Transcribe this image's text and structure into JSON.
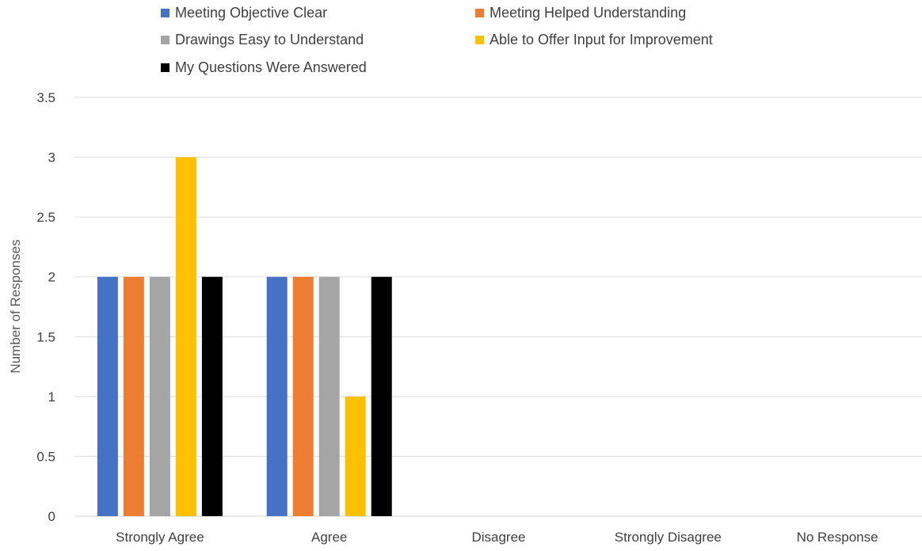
{
  "chart_data": {
    "type": "bar",
    "title": "",
    "xlabel": "",
    "ylabel": "Number of Responses",
    "categories": [
      "Strongly Agree",
      "Agree",
      "Disagree",
      "Strongly Disagree",
      "No Response"
    ],
    "series": [
      {
        "name": "Meeting Objective Clear",
        "color": "#4472C4",
        "values": [
          2,
          2,
          0,
          0,
          0
        ]
      },
      {
        "name": "Meeting Helped Understanding",
        "color": "#ED7D31",
        "values": [
          2,
          2,
          0,
          0,
          0
        ]
      },
      {
        "name": "Drawings Easy to Understand",
        "color": "#A5A5A5",
        "values": [
          2,
          2,
          0,
          0,
          0
        ]
      },
      {
        "name": "Able to Offer Input for Improvement",
        "color": "#FFC000",
        "values": [
          3,
          1,
          0,
          0,
          0
        ]
      },
      {
        "name": "My Questions Were Answered",
        "color": "#000000",
        "values": [
          2,
          2,
          0,
          0,
          0
        ]
      }
    ],
    "ylim": [
      0,
      3.5
    ],
    "yticks": [
      "0",
      "0.5",
      "1",
      "1.5",
      "2",
      "2.5",
      "3",
      "3.5"
    ],
    "grid": true,
    "legend_position": "top"
  }
}
